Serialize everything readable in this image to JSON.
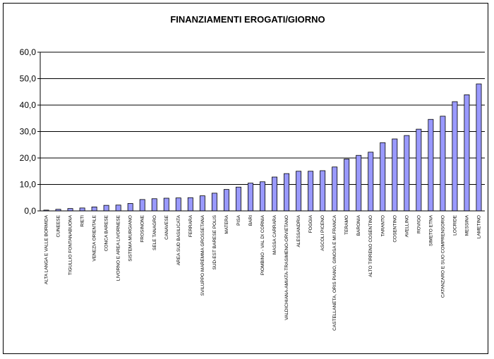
{
  "chart_data": {
    "type": "bar",
    "title": "FINANZIAMENTI EROGATI/GIORNO",
    "xlabel": "",
    "ylabel": "",
    "ylim": [
      0,
      60
    ],
    "ytick_step": 10,
    "ytick_labels": [
      "0,0",
      "10,0",
      "20,0",
      "30,0",
      "40,0",
      "50,0",
      "60,0"
    ],
    "grid": true,
    "legend": "none",
    "bar_color": "#9999ff",
    "bar_edge_color": "#000000",
    "categories": [
      "ALTA LANGA E VALLE BORMIDA",
      "CUNEESE",
      "TIGULLIO FONTANABUONA",
      "RIETI",
      "VENEZIA ORIENTALE",
      "CONCA BARESE",
      "LIVORNO E AREA LIVORNESE",
      "SISTEMA MURGIANO",
      "FROSINONE",
      "SELE TANAGRO",
      "CANAVESE",
      "AREA SUD BASILICATA",
      "FERRARA",
      "SVILUPPO MAREMMA GROSSETANA",
      "SUD-EST BARESE POLIS",
      "MATERA",
      "PISA",
      "BARI",
      "PIOMBINO - VAL DI CORNIA",
      "MASSA CARRARA",
      "VALDICHIANA-AMIATA-TRASIMENO-ORVIETANO",
      "ALESSANDRIA",
      "FOGGIA",
      "ASCOLI PICENO",
      "CASTELLANETA, ORIS PIANO, GINOSA E MI.FRANCA",
      "TERAMO",
      "BARONIA",
      "ALTO TIRRENO COSENTINO",
      "TARANTO",
      "COSENTINO",
      "AVELLINO",
      "ROVIGO",
      "SIMETO ETNA",
      "CATANZARO E SUO COMPRENSORIO",
      "LOCRIDE",
      "MESSINA",
      "LAMETINO"
    ],
    "values": [
      0.3,
      0.6,
      0.9,
      1.1,
      1.5,
      2.1,
      2.2,
      2.8,
      4.3,
      4.6,
      4.8,
      4.9,
      5.0,
      5.7,
      6.7,
      8.1,
      9.0,
      10.5,
      11.0,
      12.8,
      14.1,
      15.0,
      15.0,
      15.2,
      16.6,
      19.6,
      21.0,
      22.2,
      25.8,
      27.2,
      28.5,
      30.9,
      34.6,
      35.8,
      41.3,
      43.9,
      48.0
    ]
  }
}
